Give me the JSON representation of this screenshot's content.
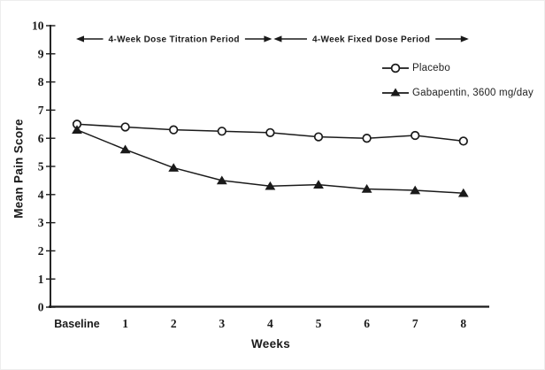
{
  "colors": {
    "ink": "#1a1a1a",
    "background": "#ffffff"
  },
  "chart_data": {
    "type": "line",
    "title": "",
    "xlabel": "Weeks",
    "ylabel": "Mean Pain Score",
    "x_categories": [
      "Baseline",
      "1",
      "2",
      "3",
      "4",
      "5",
      "6",
      "7",
      "8"
    ],
    "ylim": [
      0,
      10
    ],
    "y_ticks": [
      0,
      1,
      2,
      3,
      4,
      5,
      6,
      7,
      8,
      9,
      10
    ],
    "grid": false,
    "legend_position": "inside-upper-right",
    "series": [
      {
        "name": "Placebo",
        "marker": "open-circle",
        "values": [
          6.5,
          6.4,
          6.3,
          6.25,
          6.2,
          6.05,
          6.0,
          6.1,
          5.9
        ]
      },
      {
        "name": "Gabapentin, 3600 mg/day",
        "marker": "filled-triangle",
        "values": [
          6.3,
          5.6,
          4.95,
          4.5,
          4.3,
          4.35,
          4.2,
          4.15,
          4.05
        ]
      }
    ],
    "annotations": [
      {
        "label": "4-Week Dose Titration Period",
        "x_from": "Baseline",
        "x_to": "4"
      },
      {
        "label": "4-Week Fixed Dose Period",
        "x_from": "4",
        "x_to": "8"
      }
    ]
  }
}
